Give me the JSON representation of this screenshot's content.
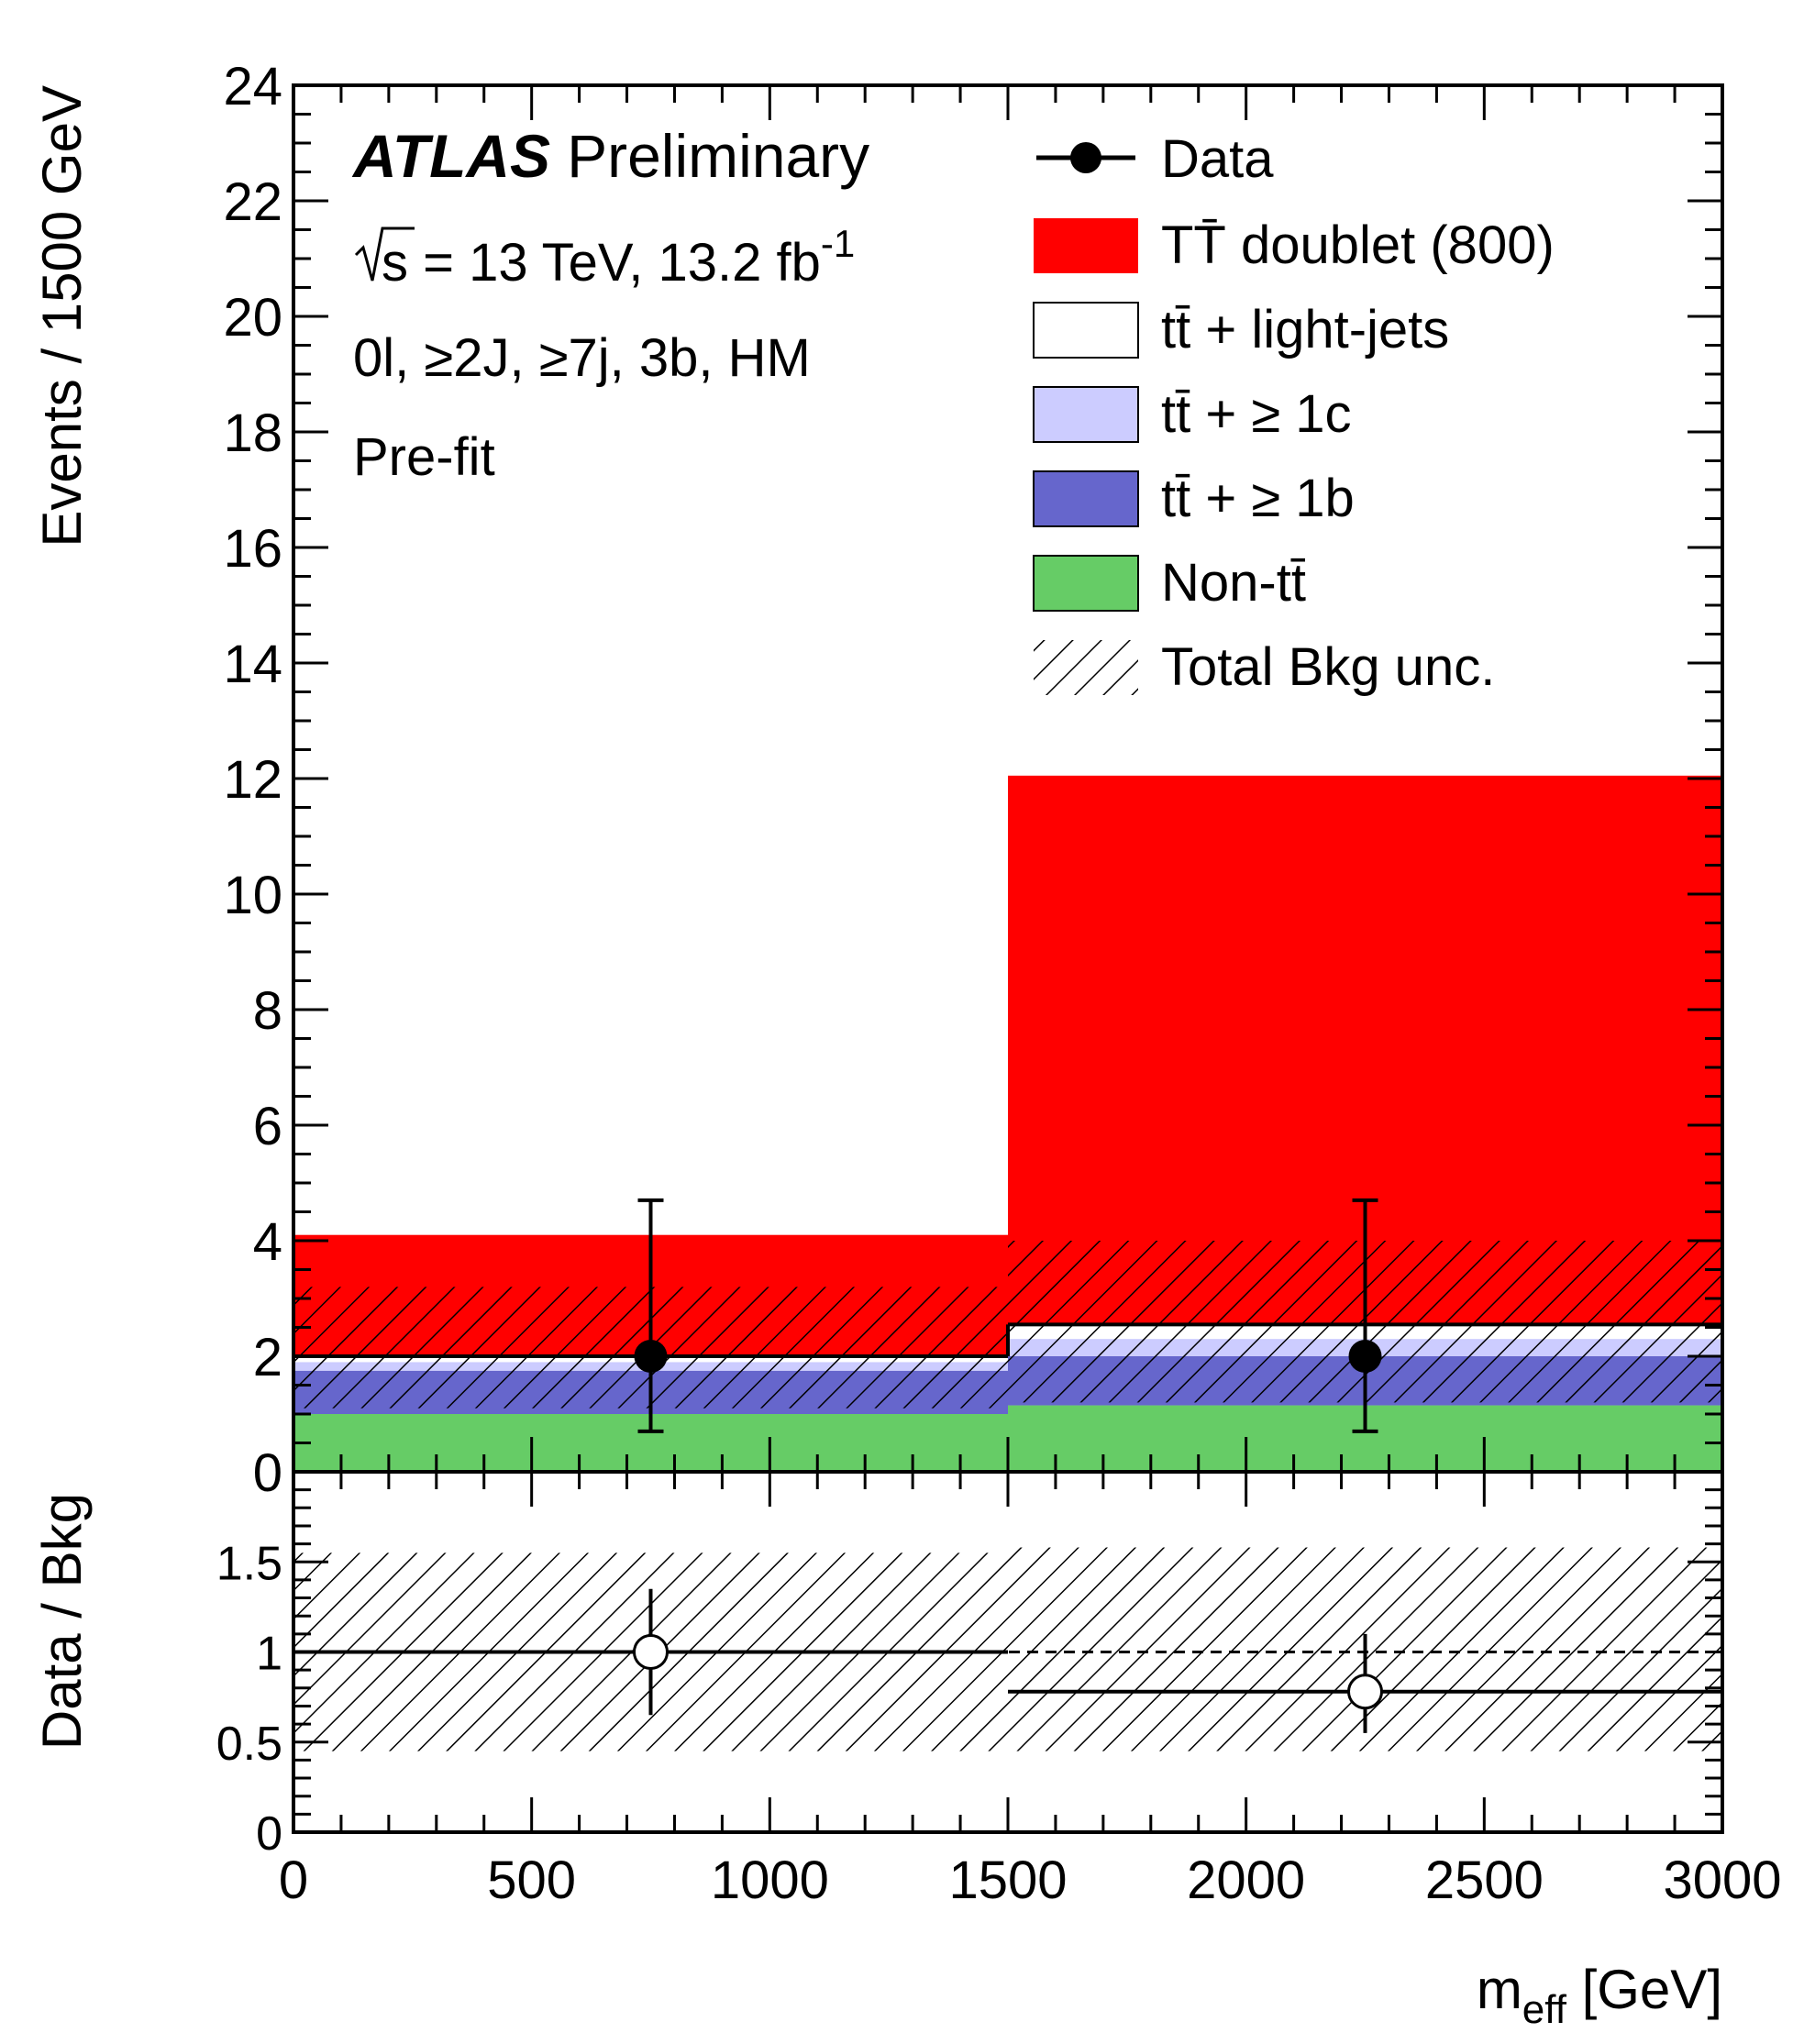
{
  "chart_data": {
    "type": "bar",
    "stacked": true,
    "x": {
      "bin_edges": [
        0,
        1500,
        3000
      ],
      "range": [
        0,
        3000
      ],
      "label": "m",
      "label_sub": "eff",
      "label_unit": " [GeV]",
      "ticks": [
        "0",
        "500",
        "1000",
        "1500",
        "2000",
        "2500",
        "3000"
      ]
    },
    "main_panel": {
      "ylabel": "Events / 1500 GeV",
      "ylim": [
        0,
        24
      ],
      "yticks": [
        "0",
        "2",
        "4",
        "6",
        "8",
        "10",
        "12",
        "14",
        "16",
        "18",
        "20",
        "22",
        "24"
      ],
      "series": [
        {
          "name": "Non-tt̄",
          "color": "#66cc66",
          "values": [
            1.0,
            1.15
          ]
        },
        {
          "name": "tt̄ + ≥ 1b",
          "color": "#6666cc",
          "values": [
            0.75,
            0.85
          ]
        },
        {
          "name": "tt̄ + ≥ 1c",
          "color": "#ccccff",
          "values": [
            0.15,
            0.3
          ]
        },
        {
          "name": "tt̄ + light-jets",
          "color": "#ffffff",
          "values": [
            0.1,
            0.25
          ]
        },
        {
          "name": "TT̄ doublet (800)",
          "color": "#ff0000",
          "values": [
            2.1,
            9.5
          ]
        }
      ],
      "total_bkg": [
        2.0,
        2.55
      ],
      "bkg_unc_band": {
        "lower": [
          1.1,
          1.2
        ],
        "upper": [
          3.2,
          4.0
        ]
      },
      "data": {
        "name": "Data",
        "x": [
          750,
          2250
        ],
        "y": [
          2,
          2
        ],
        "err_low": [
          1.3,
          1.3
        ],
        "err_high": [
          2.7,
          2.7
        ]
      }
    },
    "ratio_panel": {
      "ylabel": "Data / Bkg",
      "ylim": [
        0,
        2
      ],
      "yticks": [
        "0",
        "0.5",
        "1",
        "1.5"
      ],
      "ratio": {
        "x": [
          750,
          2250
        ],
        "y": [
          1.0,
          0.78
        ],
        "err_low": [
          0.65,
          0.55
        ],
        "err_high": [
          1.35,
          1.1
        ]
      },
      "unc_band": {
        "lower": [
          0.45,
          0.45
        ],
        "upper": [
          1.55,
          1.58
        ]
      },
      "reference_line": 1
    },
    "legend": {
      "placement": "top-right",
      "entries": [
        {
          "key": "data",
          "label": "Data"
        },
        {
          "key": "signal",
          "label": "TT̄ doublet (800)",
          "color": "#ff0000"
        },
        {
          "key": "ttlight",
          "label": "tt̄ + light-jets",
          "color": "#ffffff"
        },
        {
          "key": "ttc",
          "label": "tt̄ + ≥ 1c",
          "color": "#ccccff"
        },
        {
          "key": "ttb",
          "label": "tt̄ + ≥ 1b",
          "color": "#6666cc"
        },
        {
          "key": "nontt",
          "label": "Non-tt̄",
          "color": "#66cc66"
        },
        {
          "key": "unc",
          "label": "Total Bkg unc."
        }
      ]
    },
    "annotations": {
      "experiment": "ATLAS",
      "status": "Preliminary",
      "energy_prefix": "s = 13 TeV, 13.2 fb",
      "energy_sup": "-1",
      "selection": "0l, ≥2J, ≥7j, 3b, HM",
      "fit_state": "Pre-fit"
    }
  }
}
